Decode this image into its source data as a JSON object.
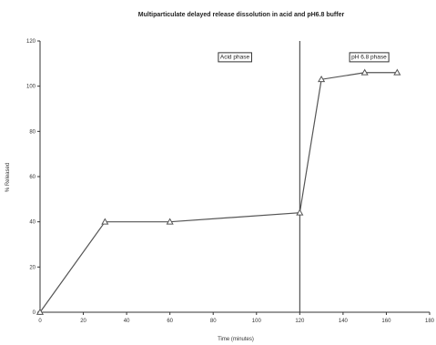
{
  "chart_data": {
    "type": "line",
    "title": "Multiparticulate delayed release dissolution in acid and pH6.8 buffer",
    "xlabel": "Time (minutes)",
    "ylabel": "% Released",
    "xlim": [
      0,
      180
    ],
    "ylim": [
      0,
      120
    ],
    "xticks": [
      0,
      20,
      40,
      60,
      80,
      100,
      120,
      140,
      160,
      180
    ],
    "yticks": [
      0,
      20,
      40,
      60,
      80,
      100,
      120
    ],
    "grid": false,
    "legend": "none",
    "series": [
      {
        "x": [
          0,
          30,
          60,
          120,
          130,
          150,
          165
        ],
        "y": [
          0,
          40,
          40,
          44,
          103,
          106,
          106
        ],
        "marker": "triangle",
        "color": "#555555"
      }
    ],
    "annotations": [
      {
        "text": "Acid phase",
        "x": 90,
        "y": 113
      },
      {
        "text": "pH 6.8 phase",
        "x": 152,
        "y": 113
      }
    ],
    "vertical_lines": [
      120
    ]
  }
}
